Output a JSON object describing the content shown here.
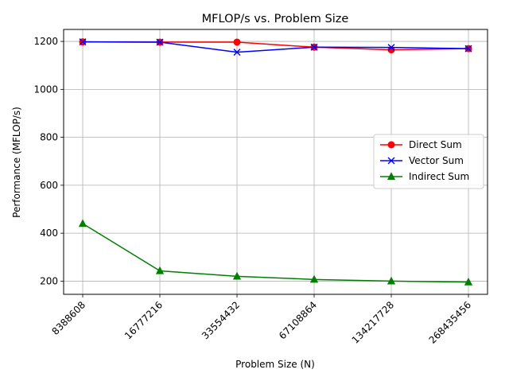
{
  "chart_data": {
    "type": "line",
    "title": "MFLOP/s vs. Problem Size",
    "xlabel": "Problem Size (N)",
    "ylabel": "Performance (MFLOP/s)",
    "categories": [
      "8388608",
      "16777216",
      "33554432",
      "67108864",
      "134217728",
      "268435456"
    ],
    "ylim": [
      145,
      1250
    ],
    "yticks": [
      "200",
      "400",
      "600",
      "800",
      "1000",
      "1200"
    ],
    "grid": true,
    "legend_position": "center-right",
    "series": [
      {
        "name": "Direct Sum",
        "color": "#ff0000",
        "marker": "circle",
        "values": [
          1198,
          1197,
          1197,
          1176,
          1165,
          1170
        ]
      },
      {
        "name": "Vector Sum",
        "color": "#0000ff",
        "marker": "x",
        "values": [
          1198,
          1197,
          1155,
          1176,
          1175,
          1170
        ]
      },
      {
        "name": "Indirect Sum",
        "color": "#008000",
        "marker": "triangle",
        "values": [
          440,
          243,
          220,
          207,
          200,
          196
        ]
      }
    ]
  }
}
